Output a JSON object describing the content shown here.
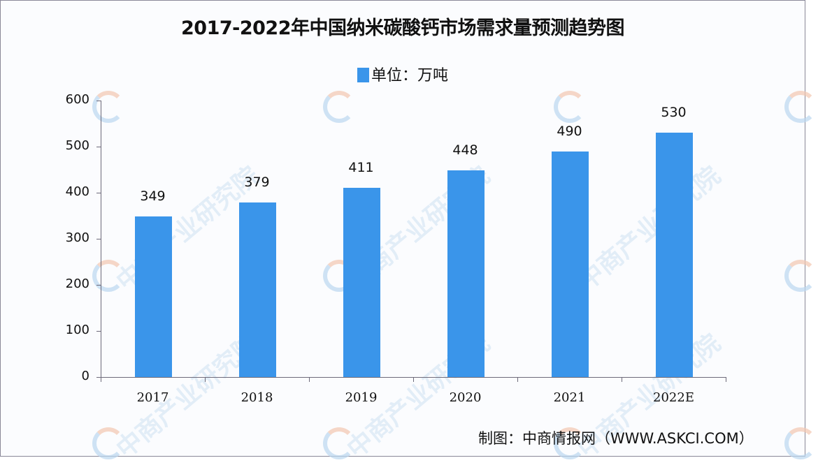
{
  "title": "2017-2022年中国纳米碳酸钙市场需求量预测趋势图",
  "legend": {
    "label": "单位：万吨",
    "color": "#3a95ea"
  },
  "source": "制图：中商情报网（WWW.ASKCI.COM）",
  "watermark": "中商产业研究院",
  "chart_data": {
    "type": "bar",
    "title": "2017-2022年中国纳米碳酸钙市场需求量预测趋势图",
    "categories": [
      "2017",
      "2018",
      "2019",
      "2020",
      "2021",
      "2022E"
    ],
    "series": [
      {
        "name": "单位：万吨",
        "values": [
          349,
          379,
          411,
          448,
          490,
          530
        ],
        "color": "#3a95ea"
      }
    ],
    "xlabel": "",
    "ylabel": "",
    "ylim": [
      0,
      600
    ],
    "yticks": [
      0,
      100,
      200,
      300,
      400,
      500,
      600
    ],
    "grid": false,
    "legend_position": "top",
    "data_labels": true
  }
}
